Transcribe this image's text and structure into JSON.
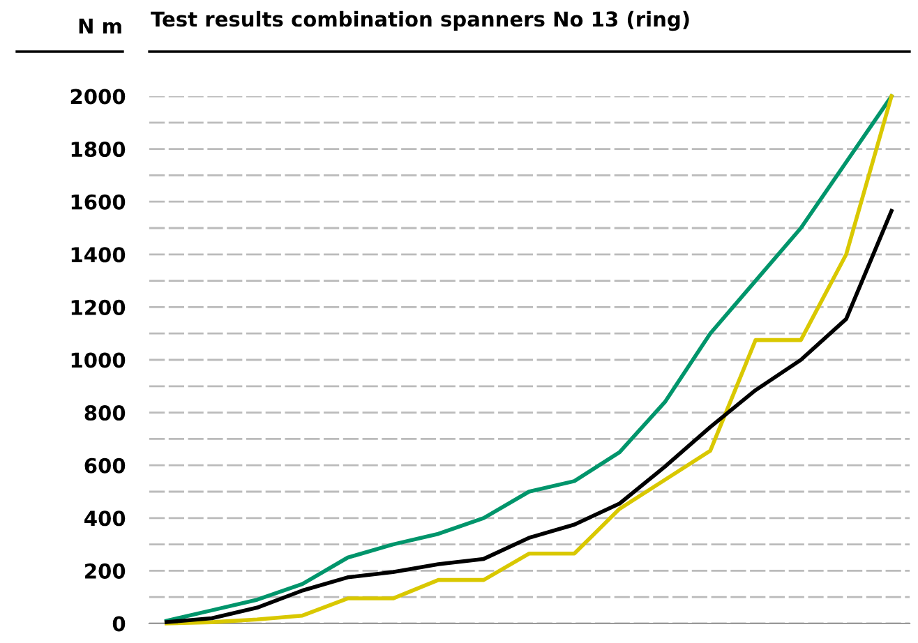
{
  "chart_data": {
    "type": "line",
    "title": "Test results combination spanners No 13 (ring)",
    "ylabel": "N m",
    "categories": [
      null,
      null,
      null,
      null,
      null,
      null,
      null,
      null,
      null,
      null,
      null,
      null,
      null,
      null,
      null,
      null,
      null
    ],
    "tick_labels": "y",
    "ylim": [
      0,
      2000
    ],
    "yticks": [
      0,
      {
        "value": 100,
        "label": null
      },
      200,
      {
        "value": 300,
        "label": null
      },
      400,
      {
        "value": 500,
        "label": null
      },
      600,
      {
        "value": 700,
        "label": null
      },
      800,
      {
        "value": 900,
        "label": null
      },
      1000,
      {
        "value": 1100,
        "label": null
      },
      1200,
      {
        "value": 1300,
        "label": null
      },
      1400,
      {
        "value": 1500,
        "label": null
      },
      1600,
      {
        "value": 1700,
        "label": null
      },
      1800,
      {
        "value": 1900,
        "label": null
      },
      2000
    ],
    "grid": "y",
    "line_style": "solid",
    "series": [
      {
        "color": "#00956b",
        "values": [
          10,
          50,
          90,
          150,
          250,
          300,
          340,
          400,
          500,
          540,
          650,
          840,
          1100,
          1300,
          1500,
          1750,
          2000
        ]
      },
      {
        "color": "#d9c800",
        "values": [
          0,
          5,
          15,
          30,
          95,
          95,
          165,
          165,
          265,
          265,
          435,
          545,
          655,
          1075,
          1075,
          1400,
          2000
        ]
      },
      {
        "color": "#000000",
        "values": [
          5,
          20,
          60,
          125,
          175,
          195,
          225,
          245,
          325,
          375,
          455,
          595,
          745,
          885,
          1000,
          1155,
          1565
        ]
      }
    ]
  }
}
